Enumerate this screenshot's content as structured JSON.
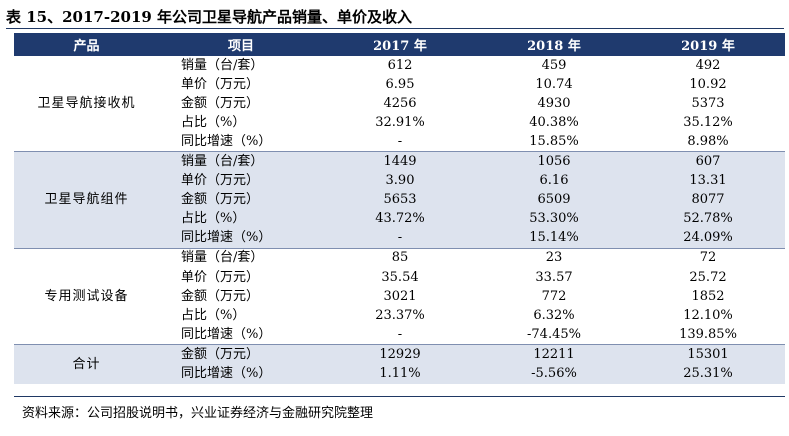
{
  "title": "表 15、2017-2019 年公司卫星导航产品销量、单价及收入",
  "headers": [
    "产品",
    "项目",
    "2017 年",
    "2018 年",
    "2019 年"
  ],
  "groups": [
    {
      "product": "卫星导航接收机",
      "rows": [
        {
          "metric": "销量（台/套）",
          "values": [
            "612",
            "459",
            "492"
          ]
        },
        {
          "metric": "单价（万元）",
          "values": [
            "6.95",
            "10.74",
            "10.92"
          ]
        },
        {
          "metric": "金额（万元）",
          "values": [
            "4256",
            "4930",
            "5373"
          ]
        },
        {
          "metric": "占比（%）",
          "values": [
            "32.91%",
            "40.38%",
            "35.12%"
          ]
        },
        {
          "metric": "同比增速（%）",
          "values": [
            "-",
            "15.85%",
            "8.98%"
          ]
        }
      ]
    },
    {
      "product": "卫星导航组件",
      "rows": [
        {
          "metric": "销量（台/套）",
          "values": [
            "1449",
            "1056",
            "607"
          ]
        },
        {
          "metric": "单价（万元）",
          "values": [
            "3.90",
            "6.16",
            "13.31"
          ]
        },
        {
          "metric": "金额（万元）",
          "values": [
            "5653",
            "6509",
            "8077"
          ]
        },
        {
          "metric": "占比（%）",
          "values": [
            "43.72%",
            "53.30%",
            "52.78%"
          ]
        },
        {
          "metric": "同比增速（%）",
          "values": [
            "-",
            "15.14%",
            "24.09%"
          ]
        }
      ]
    },
    {
      "product": "专用测试设备",
      "rows": [
        {
          "metric": "销量（台/套）",
          "values": [
            "85",
            "23",
            "72"
          ]
        },
        {
          "metric": "单价（万元）",
          "values": [
            "35.54",
            "33.57",
            "25.72"
          ]
        },
        {
          "metric": "金额（万元）",
          "values": [
            "3021",
            "772",
            "1852"
          ]
        },
        {
          "metric": "占比（%）",
          "values": [
            "23.37%",
            "6.32%",
            "12.10%"
          ]
        },
        {
          "metric": "同比增速（%）",
          "values": [
            "-",
            "-74.45%",
            "139.85%"
          ]
        }
      ]
    },
    {
      "product": "合计",
      "rows": [
        {
          "metric": "金额（万元）",
          "values": [
            "12929",
            "12211",
            "15301"
          ]
        },
        {
          "metric": "同比增速（%）",
          "values": [
            "1.11%",
            "-5.56%",
            "25.31%"
          ]
        }
      ]
    }
  ],
  "source": "资料来源：公司招股说明书，兴业证券经济与金融研究院整理",
  "colors": {
    "header_bg": "#1f3a6e",
    "alt_group_bg": "#dde3ee",
    "rule": "#1f3864"
  }
}
